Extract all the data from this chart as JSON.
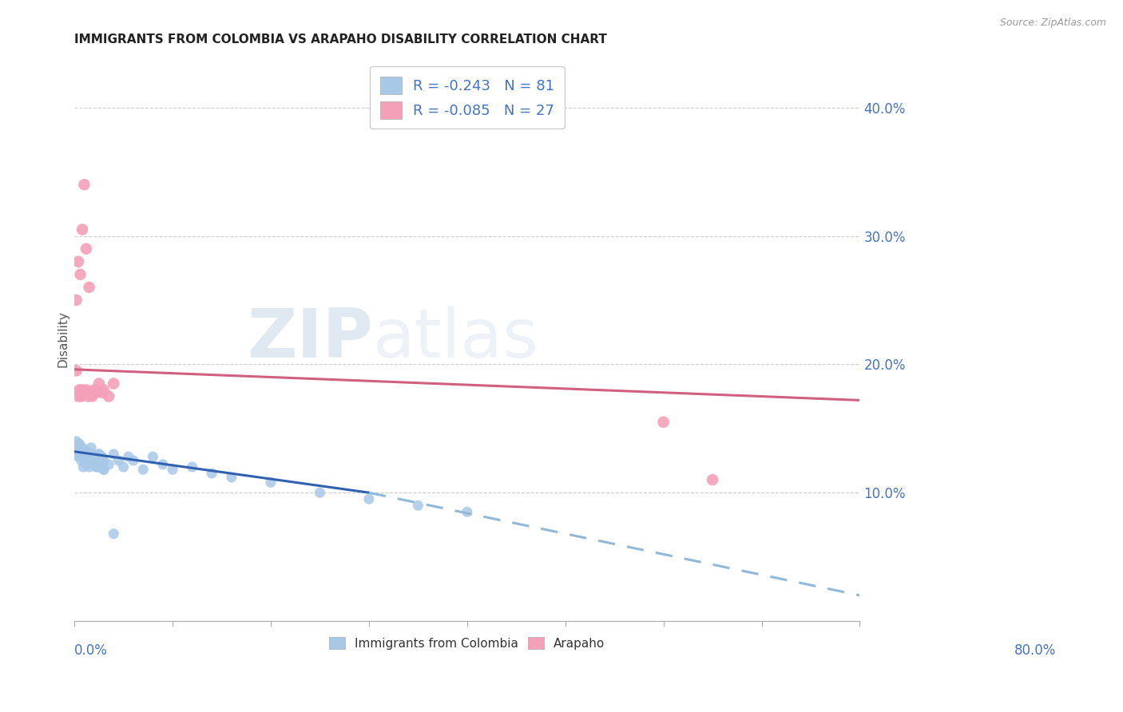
{
  "title": "IMMIGRANTS FROM COLOMBIA VS ARAPAHO DISABILITY CORRELATION CHART",
  "source": "Source: ZipAtlas.com",
  "ylabel": "Disability",
  "ylabel_right_ticks": [
    "10.0%",
    "20.0%",
    "30.0%",
    "40.0%"
  ],
  "ylabel_right_vals": [
    0.1,
    0.2,
    0.3,
    0.4
  ],
  "xlim": [
    0.0,
    0.8
  ],
  "ylim": [
    0.0,
    0.44
  ],
  "legend_R1": "-0.243",
  "legend_N1": "81",
  "legend_R2": "-0.085",
  "legend_N2": "27",
  "color_blue": "#a8c8e8",
  "color_pink": "#f4a0b8",
  "trendline_blue_solid_color": "#3060b0",
  "trendline_blue_dashed_color": "#90b8d8",
  "trendline_pink_color": "#d06080",
  "watermark_ZIP": "ZIP",
  "watermark_atlas": "atlas",
  "bg_color": "#ffffff",
  "grid_color": "#cccccc",
  "blue_scatter_x": [
    0.002,
    0.003,
    0.004,
    0.005,
    0.006,
    0.007,
    0.008,
    0.009,
    0.01,
    0.011,
    0.012,
    0.013,
    0.014,
    0.015,
    0.016,
    0.017,
    0.018,
    0.019,
    0.02,
    0.021,
    0.022,
    0.023,
    0.024,
    0.025,
    0.026,
    0.027,
    0.028,
    0.029,
    0.03,
    0.003,
    0.004,
    0.005,
    0.006,
    0.007,
    0.008,
    0.009,
    0.01,
    0.011,
    0.012,
    0.013,
    0.014,
    0.015,
    0.016,
    0.017,
    0.018,
    0.019,
    0.02,
    0.022,
    0.025,
    0.028,
    0.03,
    0.035,
    0.04,
    0.045,
    0.05,
    0.055,
    0.06,
    0.07,
    0.08,
    0.09,
    0.1,
    0.12,
    0.14,
    0.16,
    0.2,
    0.25,
    0.3,
    0.35,
    0.4,
    0.003,
    0.005,
    0.007,
    0.01,
    0.012,
    0.015,
    0.018,
    0.02,
    0.025,
    0.03,
    0.04
  ],
  "blue_scatter_y": [
    0.14,
    0.135,
    0.138,
    0.132,
    0.13,
    0.128,
    0.135,
    0.133,
    0.13,
    0.128,
    0.125,
    0.132,
    0.128,
    0.125,
    0.13,
    0.135,
    0.125,
    0.128,
    0.122,
    0.125,
    0.128,
    0.122,
    0.12,
    0.13,
    0.125,
    0.122,
    0.128,
    0.12,
    0.118,
    0.13,
    0.128,
    0.135,
    0.13,
    0.125,
    0.128,
    0.12,
    0.13,
    0.125,
    0.122,
    0.128,
    0.125,
    0.12,
    0.128,
    0.13,
    0.125,
    0.122,
    0.128,
    0.12,
    0.13,
    0.128,
    0.125,
    0.122,
    0.13,
    0.125,
    0.12,
    0.128,
    0.125,
    0.118,
    0.128,
    0.122,
    0.118,
    0.12,
    0.115,
    0.112,
    0.108,
    0.1,
    0.095,
    0.09,
    0.085,
    0.135,
    0.138,
    0.13,
    0.128,
    0.13,
    0.125,
    0.13,
    0.128,
    0.12,
    0.118,
    0.068
  ],
  "pink_scatter_x": [
    0.002,
    0.004,
    0.005,
    0.006,
    0.007,
    0.008,
    0.01,
    0.012,
    0.014,
    0.016,
    0.018,
    0.02,
    0.022,
    0.025,
    0.028,
    0.03,
    0.035,
    0.04,
    0.002,
    0.004,
    0.006,
    0.008,
    0.01,
    0.012,
    0.015,
    0.6,
    0.65
  ],
  "pink_scatter_y": [
    0.195,
    0.175,
    0.18,
    0.178,
    0.175,
    0.18,
    0.178,
    0.18,
    0.175,
    0.178,
    0.175,
    0.18,
    0.178,
    0.185,
    0.178,
    0.18,
    0.175,
    0.185,
    0.25,
    0.28,
    0.27,
    0.305,
    0.34,
    0.29,
    0.26,
    0.155,
    0.11
  ],
  "trendline_pink_x0": 0.0,
  "trendline_pink_y0": 0.196,
  "trendline_pink_x1": 0.8,
  "trendline_pink_y1": 0.172,
  "trendline_blue_solid_x0": 0.0,
  "trendline_blue_solid_y0": 0.132,
  "trendline_blue_solid_x1": 0.3,
  "trendline_blue_solid_y1": 0.1,
  "trendline_blue_dash_x0": 0.3,
  "trendline_blue_dash_y0": 0.1,
  "trendline_blue_dash_x1": 0.8,
  "trendline_blue_dash_y1": 0.02
}
